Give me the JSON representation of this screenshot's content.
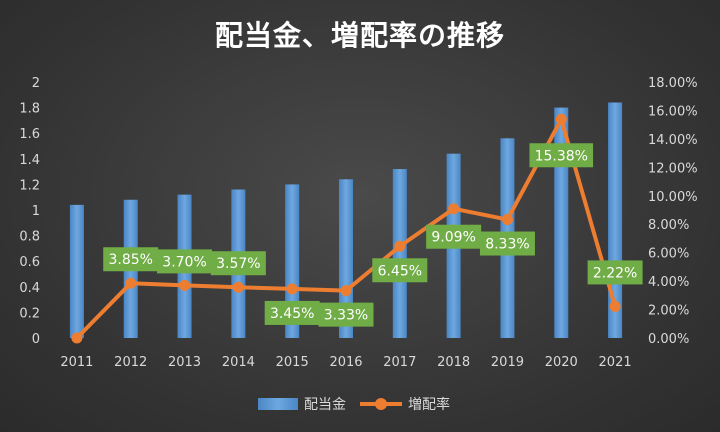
{
  "chart_data": {
    "type": "bar",
    "title": "配当金、増配率の推移",
    "categories": [
      "2011",
      "2012",
      "2013",
      "2014",
      "2015",
      "2016",
      "2017",
      "2018",
      "2019",
      "2020",
      "2021"
    ],
    "series": [
      {
        "name": "配当金",
        "type": "bar",
        "axis": "left",
        "values": [
          1.04,
          1.08,
          1.12,
          1.16,
          1.2,
          1.24,
          1.32,
          1.44,
          1.56,
          1.8,
          1.84
        ]
      },
      {
        "name": "増配率",
        "type": "line",
        "axis": "right",
        "values": [
          0,
          3.85,
          3.7,
          3.57,
          3.45,
          3.33,
          6.45,
          9.09,
          8.33,
          15.38,
          2.22
        ],
        "labels": [
          "",
          "3.85%",
          "3.70%",
          "3.57%",
          "3.45%",
          "3.33%",
          "6.45%",
          "9.09%",
          "8.33%",
          "15.38%",
          "2.22%"
        ]
      }
    ],
    "y_left": {
      "min": 0,
      "max": 2,
      "ticks": [
        "0",
        "0.2",
        "0.4",
        "0.6",
        "0.8",
        "1",
        "1.2",
        "1.4",
        "1.6",
        "1.8",
        "2"
      ]
    },
    "y_right": {
      "min": 0,
      "max": 18,
      "ticks": [
        "0.00%",
        "2.00%",
        "4.00%",
        "6.00%",
        "8.00%",
        "10.00%",
        "12.00%",
        "14.00%",
        "16.00%",
        "18.00%"
      ]
    },
    "legend_position": "bottom",
    "colors": {
      "bar": "#5b9bd5",
      "line": "#ed7d31",
      "label_bg": "#70ad47",
      "text": "#d9d9d9",
      "title": "#ffffff"
    }
  }
}
